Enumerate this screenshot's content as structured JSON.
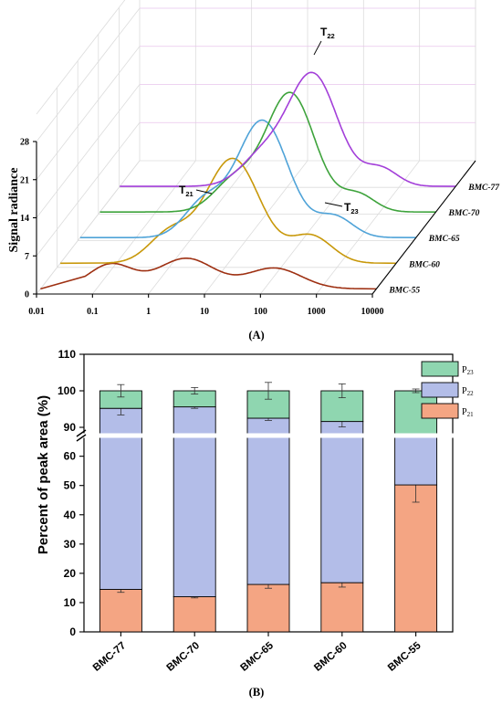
{
  "chart_data": [
    {
      "type": "line",
      "panel_label": "(A)",
      "ylabel": "Signal radiance",
      "y_ticks": [
        "0",
        "7",
        "14",
        "21",
        "28"
      ],
      "x_ticks": [
        "0.01",
        "0.1",
        "1",
        "10",
        "100",
        "1000",
        "10000"
      ],
      "xscale": "log",
      "ylim": [
        0,
        28
      ],
      "annotations": [
        {
          "main": "T",
          "sub": "21"
        },
        {
          "main": "T",
          "sub": "22"
        },
        {
          "main": "T",
          "sub": "23"
        }
      ],
      "series": [
        {
          "name": "BMC-77",
          "color": "#a33fd9",
          "peaks": [
            {
              "t": 3.5,
              "amp": 5.3,
              "w": 0.18
            },
            {
              "t": 28,
              "amp": 20.5,
              "w": 0.2
            },
            {
              "t": 450,
              "amp": 3.3,
              "w": 0.14
            }
          ]
        },
        {
          "name": "BMC-70",
          "color": "#3ea33c",
          "peaks": [
            {
              "t": 2.5,
              "amp": 5.6,
              "w": 0.17
            },
            {
              "t": 25,
              "amp": 21.8,
              "w": 0.2
            },
            {
              "t": 400,
              "amp": 3.2,
              "w": 0.14
            }
          ]
        },
        {
          "name": "BMC-65",
          "color": "#4fa3d8",
          "peaks": [
            {
              "t": 1.6,
              "amp": 6.2,
              "w": 0.16
            },
            {
              "t": 18,
              "amp": 21.5,
              "w": 0.21
            },
            {
              "t": 350,
              "amp": 3.8,
              "w": 0.15
            }
          ]
        },
        {
          "name": "BMC-60",
          "color": "#c8980a",
          "peaks": [
            {
              "t": 0.9,
              "amp": 5.4,
              "w": 0.17
            },
            {
              "t": 12,
              "amp": 19.2,
              "w": 0.22
            },
            {
              "t": 300,
              "amp": 5.0,
              "w": 0.17
            }
          ]
        },
        {
          "name": "BMC-55",
          "color": "#9e3012",
          "peaks": [
            {
              "t": 0.18,
              "amp": 4.5,
              "w": 0.18
            },
            {
              "t": 4,
              "amp": 5.6,
              "w": 0.23
            },
            {
              "t": 150,
              "amp": 3.8,
              "w": 0.22
            }
          ]
        }
      ]
    },
    {
      "type": "bar",
      "stacked": true,
      "panel_label": "(B)",
      "ylabel": "Percent of peak area (%)",
      "y_ticks_lower": [
        "0",
        "10",
        "20",
        "30",
        "40",
        "50",
        "60"
      ],
      "y_ticks_upper": [
        "90",
        "100",
        "110"
      ],
      "axis_break": [
        68,
        87
      ],
      "categories": [
        "BMC-77",
        "BMC-70",
        "BMC-65",
        "BMC-60",
        "BMC-55"
      ],
      "series": [
        {
          "name": "P21",
          "label_main": "P",
          "label_sub": "21",
          "color": "#f4a583",
          "values": [
            14.5,
            12.0,
            16.2,
            16.8,
            50.2
          ],
          "errors": [
            1.0,
            0.4,
            1.3,
            1.5,
            5.9
          ]
        },
        {
          "name": "P22",
          "label_main": "P",
          "label_sub": "22",
          "color": "#b3bde8",
          "values": [
            80.7,
            83.6,
            76.3,
            74.8,
            37.7
          ],
          "errors": [
            1.8,
            0.4,
            0.6,
            1.5,
            6.5
          ]
        },
        {
          "name": "P23",
          "label_main": "P",
          "label_sub": "23",
          "color": "#8fd6b0",
          "values": [
            4.8,
            4.4,
            7.5,
            8.4,
            12.1
          ],
          "errors": [
            1.7,
            0.9,
            2.3,
            1.9,
            0.5
          ]
        }
      ]
    }
  ]
}
